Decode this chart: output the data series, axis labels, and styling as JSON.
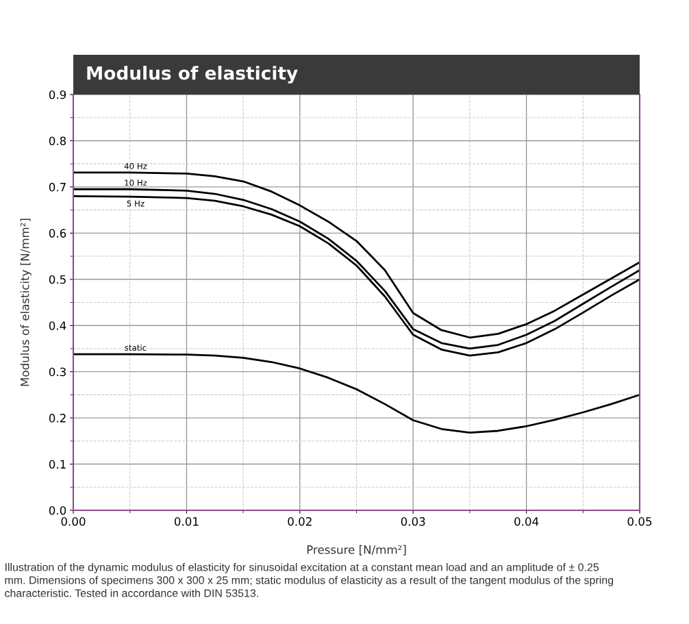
{
  "chart_data": {
    "type": "line",
    "title": "Modulus of elasticity",
    "xlabel": "Pressure [N/mm²]",
    "ylabel": "Modulus of elasticity [N/mm²]",
    "x": [
      0,
      0.005,
      0.01,
      0.0125,
      0.015,
      0.0175,
      0.02,
      0.0225,
      0.025,
      0.0275,
      0.03,
      0.0325,
      0.035,
      0.0375,
      0.04,
      0.0425,
      0.045,
      0.0475,
      0.05
    ],
    "series": [
      {
        "name": "40 Hz",
        "color": "#000000",
        "values": [
          0.731,
          0.731,
          0.729,
          0.723,
          0.712,
          0.69,
          0.66,
          0.625,
          0.583,
          0.52,
          0.427,
          0.39,
          0.374,
          0.382,
          0.403,
          0.432,
          0.467,
          0.502,
          0.537
        ]
      },
      {
        "name": "10 Hz",
        "color": "#000000",
        "values": [
          0.695,
          0.695,
          0.692,
          0.685,
          0.672,
          0.652,
          0.625,
          0.588,
          0.54,
          0.475,
          0.392,
          0.362,
          0.35,
          0.358,
          0.38,
          0.41,
          0.447,
          0.484,
          0.52
        ]
      },
      {
        "name": "5 Hz",
        "color": "#000000",
        "values": [
          0.68,
          0.679,
          0.676,
          0.67,
          0.658,
          0.64,
          0.615,
          0.578,
          0.53,
          0.463,
          0.38,
          0.348,
          0.335,
          0.342,
          0.362,
          0.392,
          0.428,
          0.465,
          0.5
        ]
      },
      {
        "name": "static",
        "color": "#000000",
        "values": [
          0.338,
          0.338,
          0.337,
          0.335,
          0.33,
          0.321,
          0.307,
          0.287,
          0.262,
          0.23,
          0.195,
          0.176,
          0.168,
          0.172,
          0.182,
          0.196,
          0.212,
          0.23,
          0.25
        ]
      }
    ],
    "xlim": [
      0,
      0.05
    ],
    "ylim": [
      0,
      0.9
    ],
    "xticks": [
      {
        "value": 0,
        "label": "0.00"
      },
      {
        "value": 0.01,
        "label": "0.01"
      },
      {
        "value": 0.02,
        "label": "0.02"
      },
      {
        "value": 0.03,
        "label": "0.03"
      },
      {
        "value": 0.04,
        "label": "0.04"
      },
      {
        "value": 0.05,
        "label": "0.05"
      }
    ],
    "yticks": [
      {
        "value": 0,
        "label": "0.0"
      },
      {
        "value": 0.1,
        "label": "0.1"
      },
      {
        "value": 0.2,
        "label": "0.2"
      },
      {
        "value": 0.3,
        "label": "0.3"
      },
      {
        "value": 0.4,
        "label": "0.4"
      },
      {
        "value": 0.5,
        "label": "0.5"
      },
      {
        "value": 0.6,
        "label": "0.6"
      },
      {
        "value": 0.7,
        "label": "0.7"
      },
      {
        "value": 0.8,
        "label": "0.8"
      },
      {
        "value": 0.9,
        "label": "0.9"
      }
    ],
    "grid": true,
    "legend": false,
    "marker": "none",
    "line_style": "solid",
    "annotations": [
      "Illustration of the dynamic modulus of elasticity for sinusoidal excitation at a constant mean load and an amplitude of ± 0.25 mm. Dimensions of specimens 300 x 300 x 25 mm; static modulus of elasticity as a result of the tangent modulus of the spring characteristic. Tested in accordance with DIN 53513."
    ]
  }
}
